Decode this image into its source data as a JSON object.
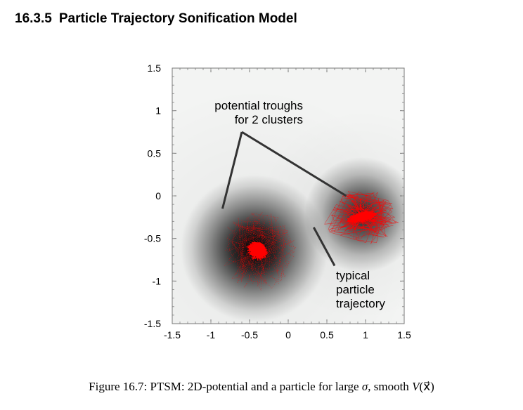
{
  "section": {
    "number": "16.3.5",
    "title": "Particle Trajectory Sonification Model"
  },
  "figure": {
    "caption": {
      "label": "Figure 16.7:",
      "text_before_sigma": "PTSM: 2D-potential and a particle for large",
      "sigma": "σ",
      "text_before_V": ", smooth",
      "V_function": "V",
      "V_argument": "(x⃗)"
    }
  },
  "chart_data": {
    "type": "heatmap",
    "xlim": [
      -1.5,
      1.5
    ],
    "ylim": [
      -1.5,
      1.5
    ],
    "x_ticks": [
      "-1.5",
      "-1",
      "-0.5",
      "0",
      "0.5",
      "1",
      "1.5"
    ],
    "y_ticks": [
      "1.5",
      "1",
      "0.5",
      "0",
      "-0.5",
      "-1",
      "-1.5"
    ],
    "colors": {
      "trajectory": "#ff0000",
      "trough": "#000000",
      "background": "#f3f4f3"
    },
    "clusters": [
      {
        "center": [
          -0.4,
          -0.65
        ]
      },
      {
        "center": [
          0.95,
          -0.25
        ]
      }
    ],
    "annotations": [
      {
        "lines": [
          "potential troughs",
          "for 2 clusters"
        ],
        "anchor": [
          -0.6,
          0.75
        ],
        "targets": [
          [
            -0.85,
            -0.15
          ],
          [
            0.75,
            0.0
          ]
        ]
      },
      {
        "lines": [
          "typical",
          "particle",
          "trajectory"
        ],
        "anchor": [
          0.6,
          -0.82
        ],
        "targets": [
          [
            0.33,
            -0.37
          ]
        ]
      }
    ]
  }
}
